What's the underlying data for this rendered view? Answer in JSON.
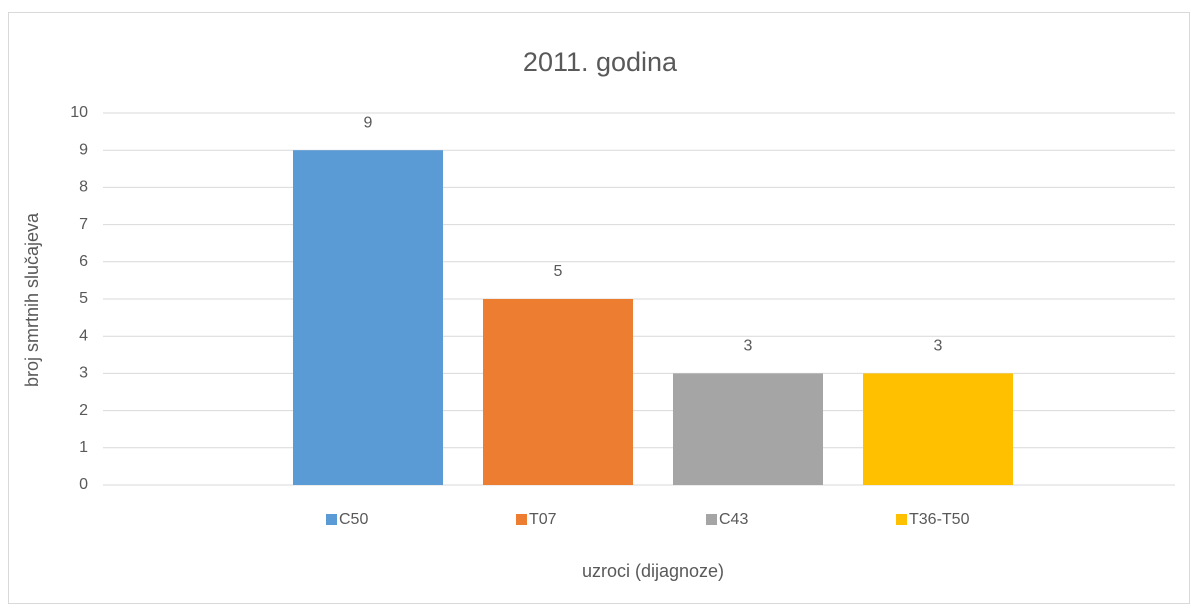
{
  "chart_data": {
    "type": "bar",
    "title": "2011. godina",
    "x_label": "uzroci (dijagnoze)",
    "y_label": "broj smrtnih slučajeva",
    "categories": [
      null
    ],
    "series": [
      {
        "name": "C50",
        "color": "#5b9bd5",
        "values": [
          9
        ]
      },
      {
        "name": "T07",
        "color": "#ed7d31",
        "values": [
          5
        ]
      },
      {
        "name": "C43",
        "color": "#a5a5a5",
        "values": [
          3
        ]
      },
      {
        "name": "T36-T50",
        "color": "#ffc000",
        "values": [
          3
        ]
      }
    ],
    "ylim": [
      0,
      10
    ],
    "yticks": [
      0,
      1,
      2,
      3,
      4,
      5,
      6,
      7,
      8,
      9,
      10
    ],
    "grid": true,
    "legend": "bottom"
  }
}
